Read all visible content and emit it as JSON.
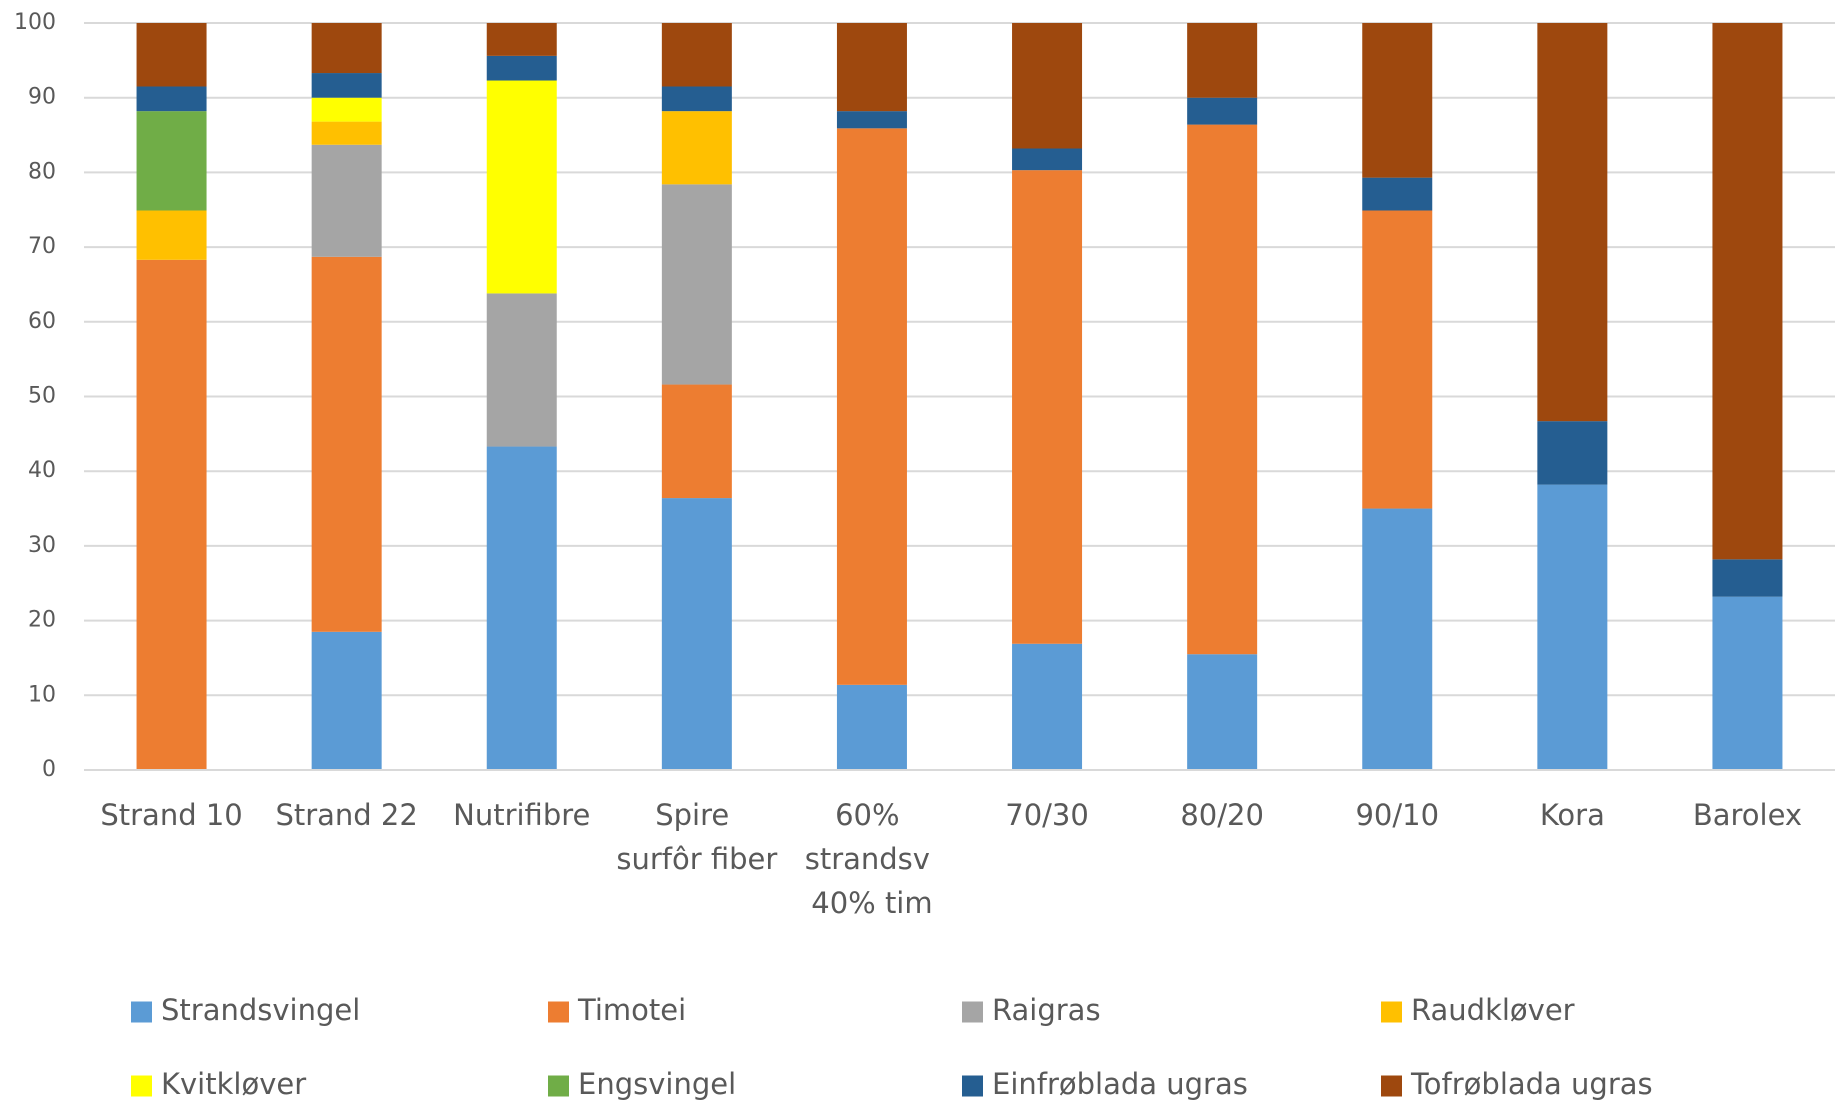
{
  "chart_data": {
    "type": "stacked_bar",
    "categories": [
      "Strand 10",
      "Strand 22",
      "Nutrifibre",
      "Spire surfôr fiber",
      "60% strandsv 40% tim",
      "70/30",
      "80/20",
      "90/10",
      "Kora",
      "Barolex"
    ],
    "series": [
      {
        "name": "Strandsvingel",
        "color": "#5b9bd5",
        "values": [
          0,
          18.5,
          43.3,
          36.4,
          11.4,
          16.9,
          15.5,
          35.0,
          38.2,
          23.2
        ]
      },
      {
        "name": "Timotei",
        "color": "#ed7d31",
        "values": [
          68.3,
          50.2,
          0,
          15.2,
          74.5,
          63.4,
          70.9,
          39.9,
          0,
          0
        ]
      },
      {
        "name": "Raigras",
        "color": "#a5a5a5",
        "values": [
          0,
          15.0,
          20.5,
          26.8,
          0,
          0,
          0,
          0,
          0,
          0
        ]
      },
      {
        "name": "Raudkløver",
        "color": "#ffc000",
        "values": [
          6.6,
          3.1,
          0,
          9.8,
          0,
          0,
          0,
          0,
          0,
          0
        ]
      },
      {
        "name": "Kvitkløver",
        "color": "#ffff00",
        "values": [
          0,
          3.2,
          28.5,
          0,
          0,
          0,
          0,
          0,
          0,
          0
        ]
      },
      {
        "name": "Engsvingel",
        "color": "#70ad47",
        "values": [
          13.3,
          0,
          0,
          0,
          0,
          0,
          0,
          0,
          0,
          0
        ]
      },
      {
        "name": "Einfrøblada ugras",
        "color": "#255e91",
        "values": [
          3.3,
          3.3,
          3.3,
          3.3,
          2.3,
          2.9,
          3.6,
          4.4,
          8.5,
          5.0
        ]
      },
      {
        "name": "Tofrøblada ugras",
        "color": "#9e480e",
        "values": [
          8.5,
          6.7,
          4.4,
          8.5,
          11.8,
          16.8,
          10.0,
          20.7,
          53.3,
          71.8
        ]
      }
    ],
    "ylim": [
      0,
      100
    ],
    "yticks": [
      0,
      10,
      20,
      30,
      40,
      50,
      60,
      70,
      80,
      90,
      100
    ],
    "grid": true,
    "legend": "bottom"
  }
}
